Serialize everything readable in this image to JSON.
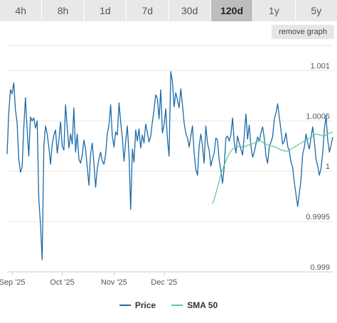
{
  "tabs": [
    {
      "label": "4h",
      "active": false
    },
    {
      "label": "8h",
      "active": false
    },
    {
      "label": "1d",
      "active": false
    },
    {
      "label": "7d",
      "active": false
    },
    {
      "label": "30d",
      "active": false
    },
    {
      "label": "120d",
      "active": true
    },
    {
      "label": "1y",
      "active": false
    },
    {
      "label": "5y",
      "active": false
    }
  ],
  "remove_graph_label": "remove graph",
  "colors": {
    "price": "#1a6aa8",
    "sma": "#55cc88"
  },
  "chart_data": {
    "type": "line",
    "ylim": [
      0.999,
      1.00125
    ],
    "yticks": [
      0.999,
      0.9995,
      1,
      1.0005,
      1.001
    ],
    "ytick_labels": [
      "0.999",
      "0.9995",
      "1",
      "1.0005",
      "1.001"
    ],
    "xticks": [
      {
        "label": "Sep '25",
        "index": 3
      },
      {
        "label": "Oct '25",
        "index": 33
      },
      {
        "label": "Nov '25",
        "index": 64
      },
      {
        "label": "Dec '25",
        "index": 94
      }
    ],
    "grid": true,
    "legend_position": "bottom",
    "series": [
      {
        "name": "Price",
        "color": "#1a6aa8",
        "values": [
          1.00017,
          1.00058,
          1.00081,
          1.00077,
          1.00088,
          1.00061,
          1.00048,
          1.00012,
          0.99999,
          1.00004,
          1.00044,
          1.00073,
          1.00041,
          1.00015,
          1.00054,
          1.0005,
          1.00053,
          1.00043,
          1.0005,
          0.99972,
          0.99947,
          0.99912,
          1.00025,
          1.00045,
          1.00037,
          1.00024,
          1.00007,
          1.00027,
          1.00036,
          1.00041,
          1.00018,
          1.00031,
          1.00049,
          1.00025,
          1.00021,
          1.00066,
          1.00043,
          1.00023,
          1.00037,
          1.00027,
          1.00063,
          1.00019,
          1.00037,
          1.00012,
          1.00008,
          1.00016,
          1.00031,
          1.00022,
          1.00004,
          0.99986,
          1.00017,
          1.00028,
          1.00008,
          0.99984,
          1.00003,
          1.00012,
          1.00019,
          1.0001,
          1.00007,
          1.00017,
          1.00037,
          1.00046,
          1.00066,
          1.00035,
          1.00024,
          1.00039,
          1.00036,
          1.00068,
          1.00049,
          1.00033,
          1.0001,
          1.0003,
          1.00045,
          1.00016,
          0.99962,
          1.00022,
          1.00009,
          1.00041,
          1.0003,
          1.00042,
          1.00023,
          1.00036,
          1.00028,
          1.00047,
          1.00038,
          1.00029,
          1.00035,
          1.00049,
          1.00061,
          1.00076,
          1.00072,
          1.00052,
          1.00081,
          1.00038,
          1.00046,
          1.00062,
          1.00032,
          1.00015,
          1.00099,
          1.00089,
          1.00064,
          1.00078,
          1.00071,
          1.00063,
          1.00082,
          1.00066,
          1.00048,
          1.00038,
          1.00033,
          1.00024,
          1.00035,
          1.00045,
          1.00018,
          1.00002,
          0.99996,
          1.00025,
          1.00037,
          1.00025,
          1.00008,
          1.00045,
          1.00028,
          1.00021,
          1.00005,
          1.00012,
          1.00018,
          1.00033,
          1.00031,
          1.00011,
          1.00001,
          0.99988,
          1.00004,
          1.00033,
          1.00035,
          1.0003,
          1.00036,
          1.00053,
          1.00029,
          1.00018,
          1.00035,
          1.00028,
          1.00022,
          1.00016,
          1.00035,
          1.00057,
          1.00032,
          1.00046,
          1.00025,
          1.00014,
          1.00019,
          1.00027,
          1.00034,
          1.0003,
          1.00038,
          1.00044,
          1.00033,
          1.00015,
          1.00008,
          1.00024,
          1.00029,
          1.00034,
          1.00052,
          1.00058,
          1.00067,
          1.00054,
          1.00041,
          1.00027,
          1.0003,
          1.00038,
          1.00025,
          1.0002,
          1.00009,
          1.00004,
          0.99989,
          0.99977,
          0.99965,
          0.99978,
          0.99992,
          1.00017,
          1.00024,
          1.00037,
          1.00028,
          1.00022,
          1.00034,
          1.00044,
          1.00029,
          1.00012,
          1.00005,
          0.99996,
          1.00003,
          1.00018,
          1.00042,
          1.00055,
          1.00031,
          1.00019,
          1.00026,
          1.00034
        ]
      },
      {
        "name": "SMA 50",
        "color": "#55cc88",
        "values": [
          0.99968,
          0.99972,
          0.99978,
          0.99984,
          0.9999,
          0.99997,
          1.00002,
          1.00006,
          1.0001,
          1.00014,
          1.00017,
          1.0002,
          1.00022,
          1.00023,
          1.00024,
          1.00024,
          1.00025,
          1.00025,
          1.00024,
          1.00024,
          1.00025,
          1.00026,
          1.00026,
          1.00027,
          1.00027,
          1.00028,
          1.00029,
          1.00029,
          1.0003,
          1.0003,
          1.00029,
          1.00028,
          1.00027,
          1.00026,
          1.00026,
          1.00025,
          1.00025,
          1.00024,
          1.00024,
          1.00023,
          1.00022,
          1.00021,
          1.00021,
          1.0002,
          1.0002,
          1.0002,
          1.00021,
          1.00022,
          1.00023,
          1.00024,
          1.00025,
          1.00026,
          1.00027,
          1.00028,
          1.00029,
          1.0003,
          1.00031,
          1.00032,
          1.00033,
          1.00034,
          1.00035,
          1.00036,
          1.00037,
          1.00037,
          1.00036,
          1.00036,
          1.00035,
          1.00035,
          1.00036,
          1.00037,
          1.00038,
          1.00038,
          1.00039
        ]
      }
    ]
  },
  "legend": [
    {
      "label": "Price",
      "color": "#1a6aa8"
    },
    {
      "label": "SMA 50",
      "color": "#55cc88"
    }
  ]
}
